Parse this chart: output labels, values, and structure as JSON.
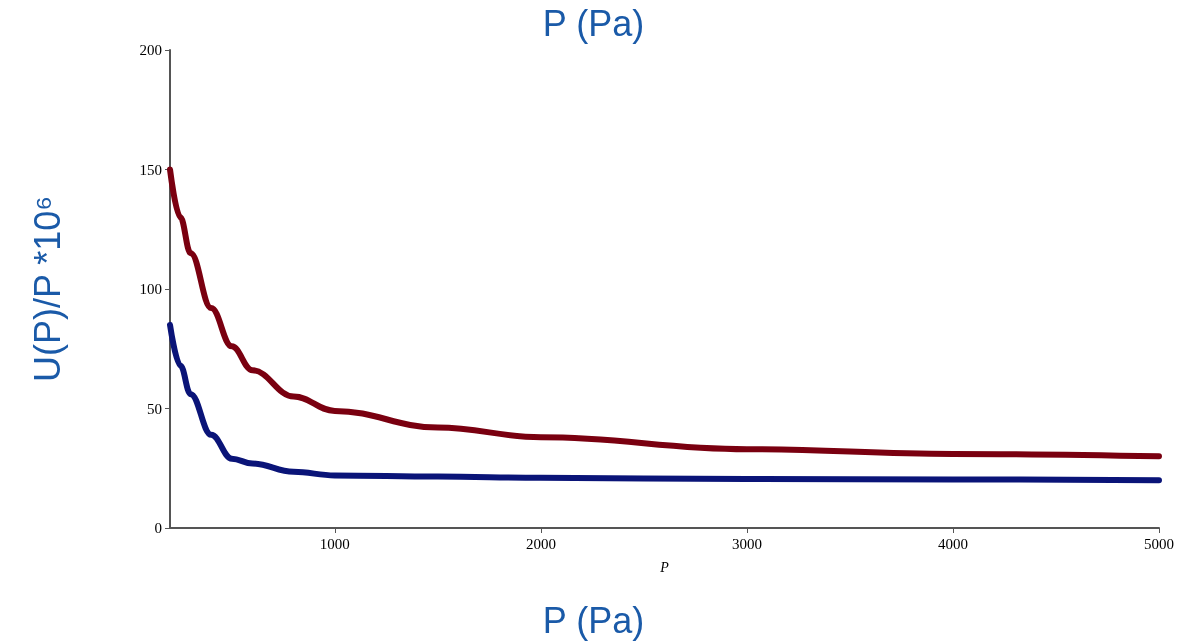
{
  "chart_data": {
    "type": "line",
    "title": "P (Pa)",
    "xlabel": "P",
    "ylabel": "U(P)/P *10⁶",
    "annotations": [
      "P (Pa)"
    ],
    "x": [
      200,
      250,
      300,
      400,
      500,
      600,
      800,
      1000,
      1500,
      2000,
      3000,
      4000,
      5000
    ],
    "series": [
      {
        "color": "#7a0010",
        "values": [
          150,
          130,
          115,
          92,
          76,
          66,
          55,
          49,
          42,
          38,
          33,
          31,
          30
        ]
      },
      {
        "color": "#0a1478",
        "values": [
          85,
          68,
          56,
          39,
          29,
          27,
          23.5,
          22,
          21.5,
          21,
          20.5,
          20.3,
          20
        ]
      }
    ],
    "xlim": [
      200,
      5000
    ],
    "xticks": [
      1000,
      2000,
      3000,
      4000,
      5000
    ],
    "ylim": [
      0,
      200
    ],
    "yticks": [
      0,
      50,
      100,
      150,
      200
    ],
    "grid": false,
    "marker": "none",
    "line_style": "solid"
  }
}
